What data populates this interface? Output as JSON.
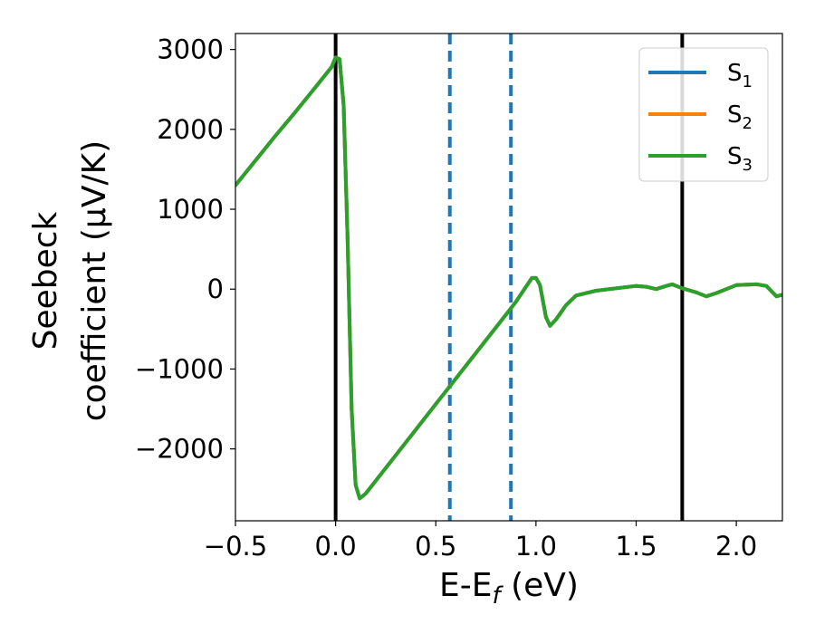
{
  "chart_data": {
    "type": "line",
    "xlabel": {
      "main": "E-E",
      "sub": "f",
      "tail": " (eV)"
    },
    "ylabel": {
      "line1": "Seebeck",
      "line2": "coefficient  (μV/K)"
    },
    "xlim": [
      -0.5,
      2.23
    ],
    "ylim": [
      -2900,
      3200
    ],
    "x_ticks": [
      {
        "value": -0.5,
        "label": "−0.5"
      },
      {
        "value": 0.0,
        "label": "0.0"
      },
      {
        "value": 0.5,
        "label": "0.5"
      },
      {
        "value": 1.0,
        "label": "1.0"
      },
      {
        "value": 1.5,
        "label": "1.5"
      },
      {
        "value": 2.0,
        "label": "2.0"
      }
    ],
    "y_ticks": [
      {
        "value": 3000,
        "label": "3000"
      },
      {
        "value": 2000,
        "label": "2000"
      },
      {
        "value": 1000,
        "label": "1000"
      },
      {
        "value": 0,
        "label": "0"
      },
      {
        "value": -1000,
        "label": "−1000"
      },
      {
        "value": -2000,
        "label": "−2000"
      }
    ],
    "vlines": [
      {
        "x": 0.0,
        "style": "solid",
        "color": "#000000"
      },
      {
        "x": 1.73,
        "style": "solid",
        "color": "#000000"
      },
      {
        "x": 0.57,
        "style": "dashed",
        "color": "#1f77b4"
      },
      {
        "x": 0.875,
        "style": "dashed",
        "color": "#1f77b4"
      }
    ],
    "series_x": [
      -0.5,
      -0.4,
      -0.3,
      -0.2,
      -0.1,
      -0.02,
      0.0,
      0.02,
      0.04,
      0.06,
      0.08,
      0.1,
      0.12,
      0.15,
      0.2,
      0.3,
      0.4,
      0.5,
      0.6,
      0.7,
      0.8,
      0.9,
      0.95,
      0.98,
      1.0,
      1.02,
      1.05,
      1.07,
      1.1,
      1.15,
      1.2,
      1.3,
      1.4,
      1.5,
      1.55,
      1.6,
      1.65,
      1.68,
      1.73,
      1.8,
      1.85,
      1.9,
      2.0,
      2.1,
      2.15,
      2.2,
      2.23
    ],
    "series": [
      {
        "name": "S",
        "sub": "1",
        "color": "#1f77b4",
        "values": [
          1300,
          1610,
          1920,
          2220,
          2530,
          2780,
          2900,
          2880,
          2300,
          600,
          -1500,
          -2450,
          -2620,
          -2560,
          -2400,
          -2080,
          -1760,
          -1440,
          -1120,
          -800,
          -480,
          -160,
          30,
          140,
          140,
          50,
          -350,
          -460,
          -380,
          -200,
          -80,
          -20,
          10,
          40,
          30,
          0,
          40,
          60,
          10,
          -40,
          -90,
          -50,
          50,
          60,
          40,
          -90,
          -70
        ]
      },
      {
        "name": "S",
        "sub": "2",
        "color": "#ff7f0e",
        "values": [
          1300,
          1610,
          1920,
          2220,
          2530,
          2780,
          2900,
          2880,
          2300,
          600,
          -1500,
          -2450,
          -2620,
          -2560,
          -2400,
          -2080,
          -1760,
          -1440,
          -1120,
          -800,
          -480,
          -160,
          30,
          140,
          140,
          50,
          -350,
          -460,
          -380,
          -200,
          -80,
          -20,
          10,
          40,
          30,
          0,
          40,
          60,
          10,
          -40,
          -90,
          -50,
          50,
          60,
          40,
          -90,
          -70
        ]
      },
      {
        "name": "S",
        "sub": "3",
        "color": "#2ca02c",
        "values": [
          1300,
          1610,
          1920,
          2220,
          2530,
          2780,
          2900,
          2880,
          2300,
          600,
          -1500,
          -2450,
          -2620,
          -2560,
          -2400,
          -2080,
          -1760,
          -1440,
          -1120,
          -800,
          -480,
          -160,
          30,
          140,
          140,
          50,
          -350,
          -460,
          -380,
          -200,
          -80,
          -20,
          10,
          40,
          30,
          0,
          40,
          60,
          10,
          -40,
          -90,
          -50,
          50,
          60,
          40,
          -90,
          -70
        ]
      }
    ],
    "legend": {
      "placement": "top-right"
    },
    "grid": false
  }
}
